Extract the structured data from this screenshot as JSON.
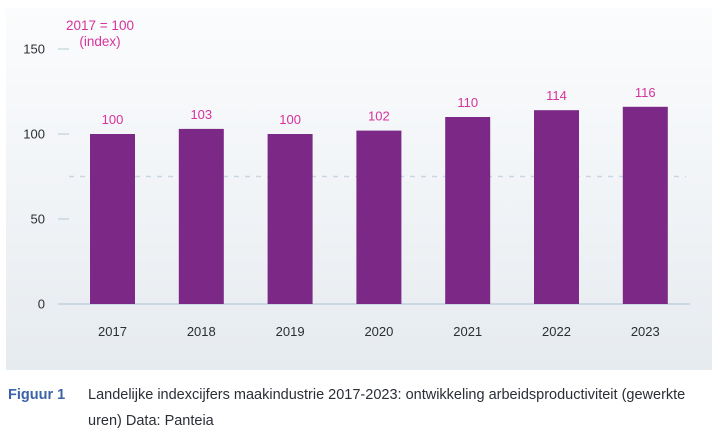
{
  "chart_data": {
    "type": "bar",
    "title": "",
    "annotation": {
      "line1": "2017 = 100",
      "line2": "(index)"
    },
    "categories": [
      "2017",
      "2018",
      "2019",
      "2020",
      "2021",
      "2022",
      "2023"
    ],
    "values": [
      100,
      103,
      100,
      102,
      110,
      114,
      116
    ],
    "data_labels": [
      "100",
      "103",
      "100",
      "102",
      "110",
      "114",
      "116"
    ],
    "xlabel": "",
    "ylabel": "",
    "ylim": [
      0,
      150
    ],
    "yticks": [
      0,
      50,
      100,
      150
    ],
    "ytick_labels": [
      "0",
      "50",
      "100",
      "150"
    ],
    "reference_line": {
      "value": 75,
      "style": "dashed"
    },
    "grid": false,
    "legend": "none",
    "colors": {
      "bar": "#7b2886",
      "data_label": "#d6339c",
      "annotation": "#d6339c",
      "tick_label": "#2b2f33",
      "axis": "#bfd0dc",
      "reference_line": "#c7d6e0"
    }
  },
  "caption": {
    "label": "Figuur 1",
    "text": "Landelijke indexcijfers maakindustrie 2017-2023: ontwikkeling arbeidsproductiviteit (gewerkte uren) Data: Panteia"
  }
}
